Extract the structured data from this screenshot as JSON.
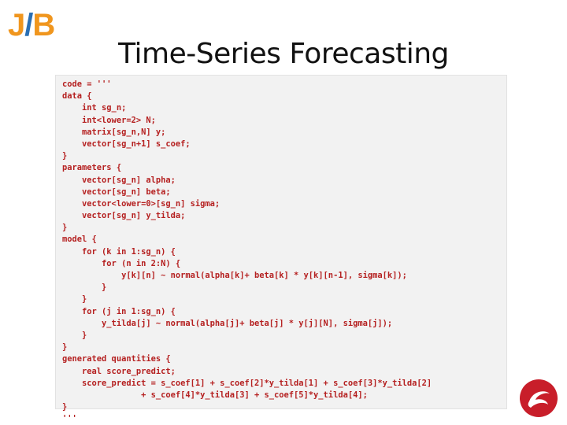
{
  "logo": {
    "j": "J",
    "slash": "/",
    "b": "B"
  },
  "title": "Time-Series Forecasting",
  "code_lines": [
    "code = '''",
    "data {",
    "    int sg_n;",
    "    int<lower=2> N;",
    "    matrix[sg_n,N] y;",
    "    vector[sg_n+1] s_coef;",
    "}",
    "parameters {",
    "    vector[sg_n] alpha;",
    "    vector[sg_n] beta;",
    "    vector<lower=0>[sg_n] sigma;",
    "    vector[sg_n] y_tilda;",
    "}",
    "model {",
    "    for (k in 1:sg_n) {",
    "        for (n in 2:N) {",
    "            y[k][n] ~ normal(alpha[k]+ beta[k] * y[k][n-1], sigma[k]);",
    "        }",
    "    }",
    "    for (j in 1:sg_n) {",
    "        y_tilda[j] ~ normal(alpha[j]+ beta[j] * y[j][N], sigma[j]);",
    "    }",
    "}",
    "generated quantities {",
    "    real score_predict;",
    "    score_predict = s_coef[1] + s_coef[2]*y_tilda[1] + s_coef[3]*y_tilda[2]",
    "                + s_coef[4]*y_tilda[3] + s_coef[5]*y_tilda[4];",
    "}",
    "'''"
  ],
  "colors": {
    "code_text": "#b52020",
    "logo_orange": "#f0961e",
    "logo_blue": "#2a6fb4",
    "footer_logo_red": "#c81e2a"
  },
  "icons": {
    "header_logo": "jb-logo-icon",
    "footer_logo": "red-swirl-logo-icon"
  }
}
